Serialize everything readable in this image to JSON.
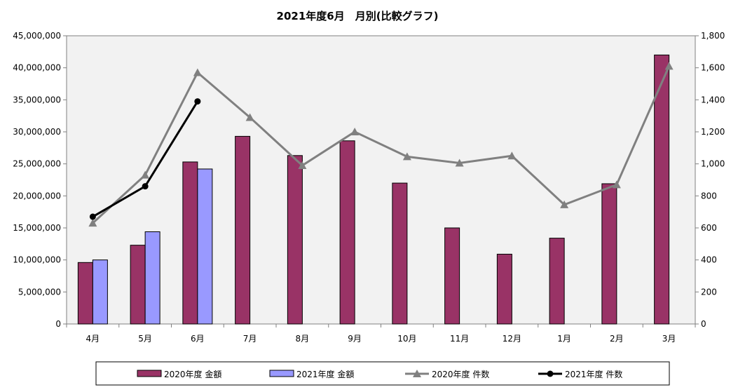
{
  "chart_data": {
    "type": "bar",
    "title": "2021年度6月　月別(比較グラフ)",
    "categories": [
      "4月",
      "5月",
      "6月",
      "7月",
      "8月",
      "9月",
      "10月",
      "11月",
      "12月",
      "1月",
      "2月",
      "3月"
    ],
    "series": [
      {
        "name": "2020年度 金額",
        "kind": "bar",
        "axis": "left",
        "color": "#993366",
        "values": [
          9600000,
          12300000,
          25300000,
          29300000,
          26300000,
          28600000,
          22000000,
          15000000,
          10900000,
          13400000,
          21900000,
          42000000
        ]
      },
      {
        "name": "2021年度 金額",
        "kind": "bar",
        "axis": "left",
        "color": "#9999FF",
        "values": [
          10000000,
          14400000,
          24200000,
          null,
          null,
          null,
          null,
          null,
          null,
          null,
          null,
          null
        ]
      },
      {
        "name": "2020年度 件数",
        "kind": "line",
        "axis": "right",
        "color": "#808080",
        "marker": "triangle",
        "values": [
          630,
          930,
          1570,
          1290,
          990,
          1200,
          1045,
          1005,
          1050,
          745,
          870,
          1610
        ]
      },
      {
        "name": "2021年度 件数",
        "kind": "line",
        "axis": "right",
        "color": "#000000",
        "marker": "circle",
        "values": [
          670,
          860,
          1390,
          null,
          null,
          null,
          null,
          null,
          null,
          null,
          null,
          null
        ]
      }
    ],
    "y_left": {
      "min": 0,
      "max": 45000000,
      "ticks": [
        "0",
        "5,000,000",
        "10,000,000",
        "15,000,000",
        "20,000,000",
        "25,000,000",
        "30,000,000",
        "35,000,000",
        "40,000,000",
        "45,000,000"
      ]
    },
    "y_right": {
      "min": 0,
      "max": 1800,
      "ticks": [
        "0",
        "200",
        "400",
        "600",
        "800",
        "1,000",
        "1,200",
        "1,400",
        "1,600",
        "1,800"
      ]
    },
    "grid": false,
    "plot_background": "#F2F2F2",
    "legend_placement": "bottom"
  }
}
